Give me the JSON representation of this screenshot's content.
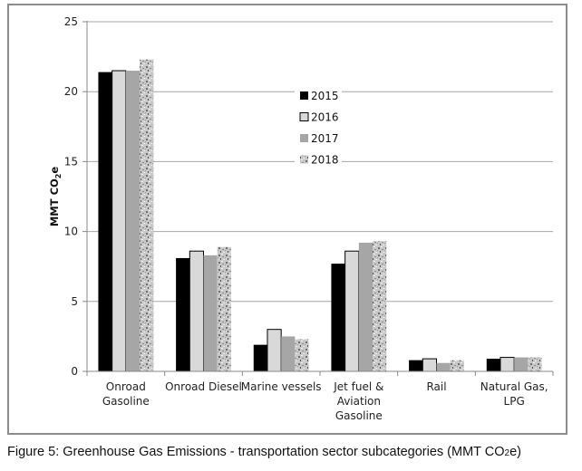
{
  "chart_data": {
    "type": "bar",
    "title": "",
    "ylabel": "MMT CO2e",
    "ylabel_parts": {
      "main": "MMT CO",
      "sub": "2",
      "tail": "e"
    },
    "xlabel": "",
    "ylim": [
      0,
      25
    ],
    "yticks": [
      0,
      5,
      10,
      15,
      20,
      25
    ],
    "grid": true,
    "legend_position": "center-top",
    "categories": [
      [
        "Onroad",
        "Gasoline"
      ],
      [
        "Onroad Diesel"
      ],
      [
        "Marine vessels"
      ],
      [
        "Jet fuel &",
        "Aviation",
        "Gasoline"
      ],
      [
        "Rail"
      ],
      [
        "Natural Gas,",
        "LPG"
      ]
    ],
    "series": [
      {
        "name": "2015",
        "color": "#000000",
        "values": [
          21.4,
          8.1,
          1.9,
          7.7,
          0.8,
          0.9
        ]
      },
      {
        "name": "2016",
        "color": "#d9d9d9",
        "values": [
          21.5,
          8.6,
          3.0,
          8.6,
          0.9,
          1.0
        ]
      },
      {
        "name": "2017",
        "color": "#a6a6a6",
        "values": [
          21.5,
          8.3,
          2.5,
          9.2,
          0.6,
          1.0
        ]
      },
      {
        "name": "2018",
        "color": "#bfbfbf",
        "pattern": "granite",
        "values": [
          22.3,
          8.9,
          2.3,
          9.3,
          0.8,
          1.0
        ]
      }
    ]
  },
  "caption": {
    "prefix": "Figure 5: Greenhouse Gas Emissions - transportation sector subcategories (MMT CO",
    "sub": "2",
    "suffix": "e)"
  }
}
